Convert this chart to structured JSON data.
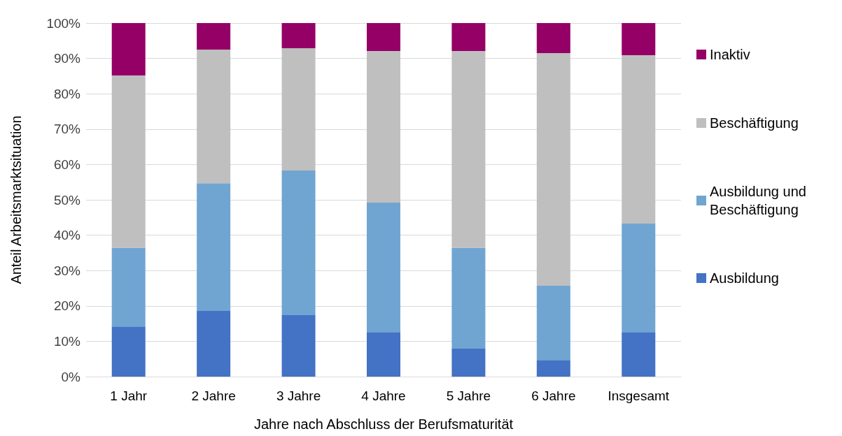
{
  "chart_data": {
    "type": "bar",
    "stacked": true,
    "xlabel": "Jahre nach Abschluss der Berufsmaturität",
    "ylabel": "Anteil Arbeitsmarktsituation",
    "categories": [
      "1 Jahr",
      "2 Jahre",
      "3 Jahre",
      "4 Jahre",
      "5 Jahre",
      "6 Jahre",
      "Insgesamt"
    ],
    "series": [
      {
        "name": "Ausbildung",
        "color": "#4472c4",
        "values": [
          14.2,
          18.6,
          17.4,
          12.6,
          7.9,
          4.7,
          12.6
        ]
      },
      {
        "name": "Ausbildung und Beschäftigung",
        "color": "#70a5d2",
        "values": [
          22.2,
          36.1,
          40.9,
          36.6,
          28.5,
          21.0,
          30.7
        ]
      },
      {
        "name": "Beschäftigung",
        "color": "#bfbfbf",
        "values": [
          48.8,
          37.8,
          34.6,
          42.9,
          55.7,
          65.8,
          47.6
        ]
      },
      {
        "name": "Inaktiv",
        "color": "#940066",
        "values": [
          14.8,
          7.5,
          7.1,
          7.9,
          7.9,
          8.5,
          9.1
        ]
      }
    ],
    "ylim": [
      0,
      100
    ],
    "yticks": [
      {
        "value": 0,
        "label": "0%"
      },
      {
        "value": 10,
        "label": "10%"
      },
      {
        "value": 20,
        "label": "20%"
      },
      {
        "value": 30,
        "label": "30%"
      },
      {
        "value": 40,
        "label": "40%"
      },
      {
        "value": 50,
        "label": "50%"
      },
      {
        "value": 60,
        "label": "60%"
      },
      {
        "value": 70,
        "label": "70%"
      },
      {
        "value": 80,
        "label": "80%"
      },
      {
        "value": 90,
        "label": "90%"
      },
      {
        "value": 100,
        "label": "100%"
      }
    ],
    "grid": "y",
    "legend": "right"
  }
}
